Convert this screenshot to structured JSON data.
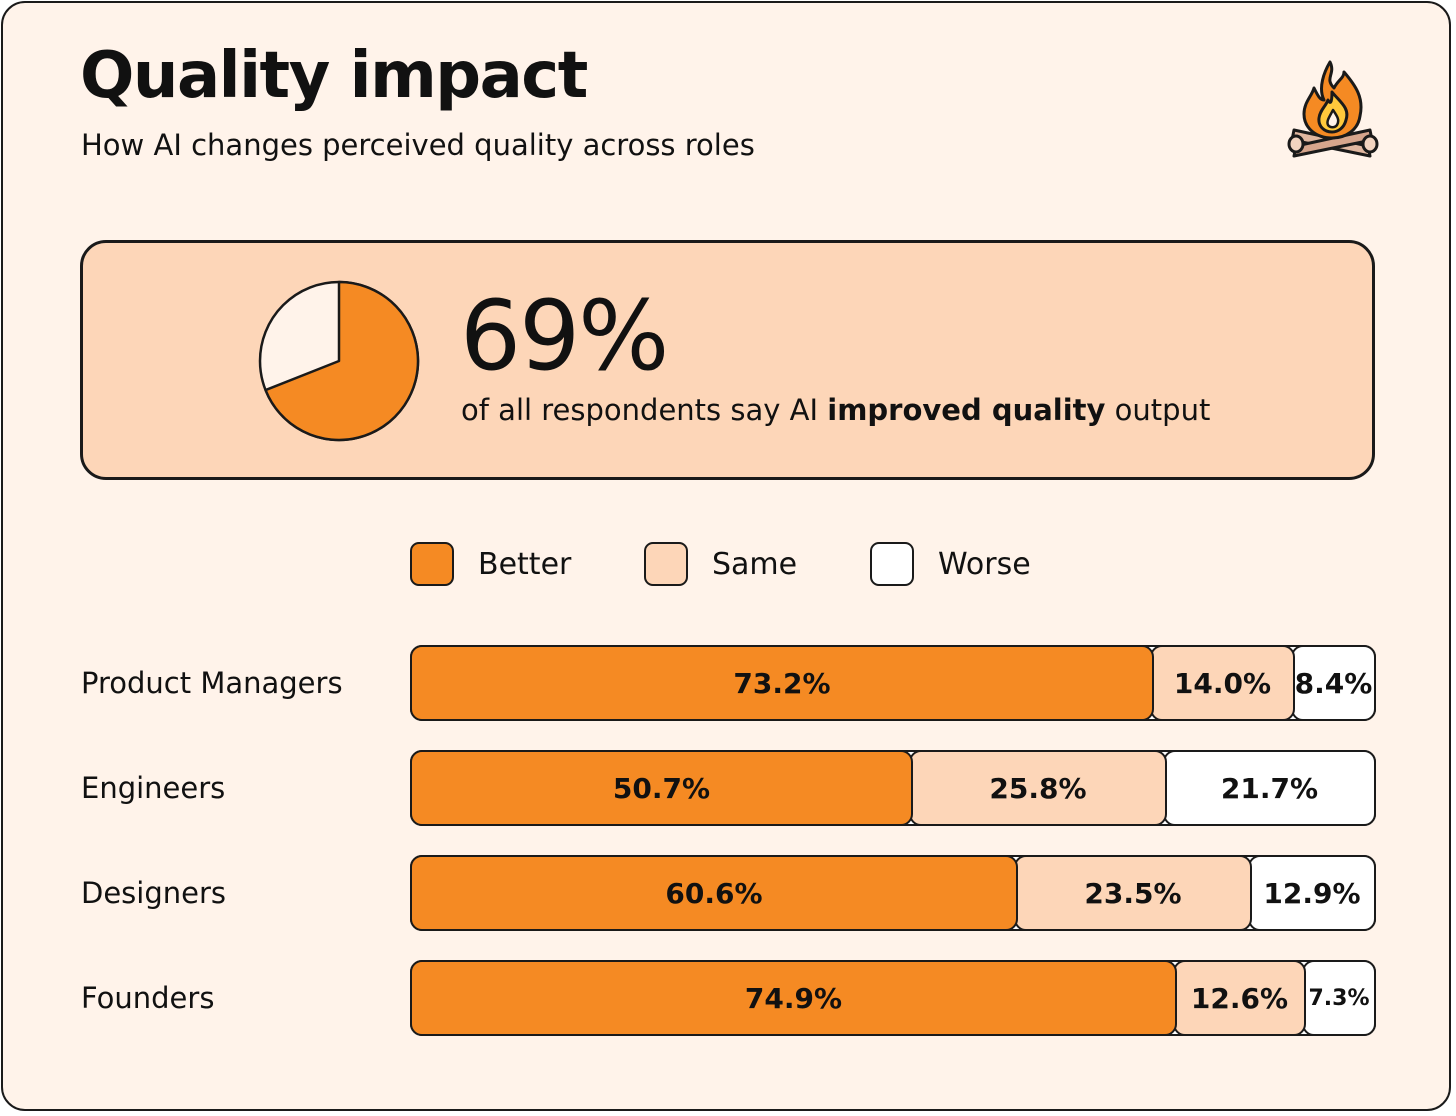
{
  "header": {
    "title": "Quality impact",
    "subtitle": "How AI changes perceived quality across roles",
    "logo": "campfire-icon"
  },
  "highlight": {
    "value": "69%",
    "fraction": 0.69,
    "caption_before": "of all respondents say AI ",
    "caption_bold": "improved quality",
    "caption_after": " output"
  },
  "colors": {
    "better": "#f58a23",
    "same": "#fdd6b8",
    "worse": "#ffffff",
    "border": "#1a1a1a"
  },
  "chart_data": {
    "type": "bar",
    "orientation": "horizontal",
    "stacked": true,
    "title": "Quality impact",
    "subtitle": "How AI changes perceived quality across roles",
    "legend_position": "top",
    "categories": [
      "Product Managers",
      "Engineers",
      "Designers",
      "Founders"
    ],
    "series": [
      {
        "name": "Better",
        "values": [
          73.2,
          50.7,
          60.6,
          74.9
        ]
      },
      {
        "name": "Same",
        "values": [
          14.0,
          25.8,
          23.5,
          12.6
        ]
      },
      {
        "name": "Worse",
        "values": [
          8.4,
          21.7,
          12.9,
          7.3
        ]
      }
    ],
    "value_labels": [
      [
        "73.2%",
        "14.0%",
        "8.4%"
      ],
      [
        "50.7%",
        "25.8%",
        "21.7%"
      ],
      [
        "60.6%",
        "23.5%",
        "12.9%"
      ],
      [
        "74.9%",
        "12.6%",
        "7.3%"
      ]
    ],
    "unit": "%"
  }
}
